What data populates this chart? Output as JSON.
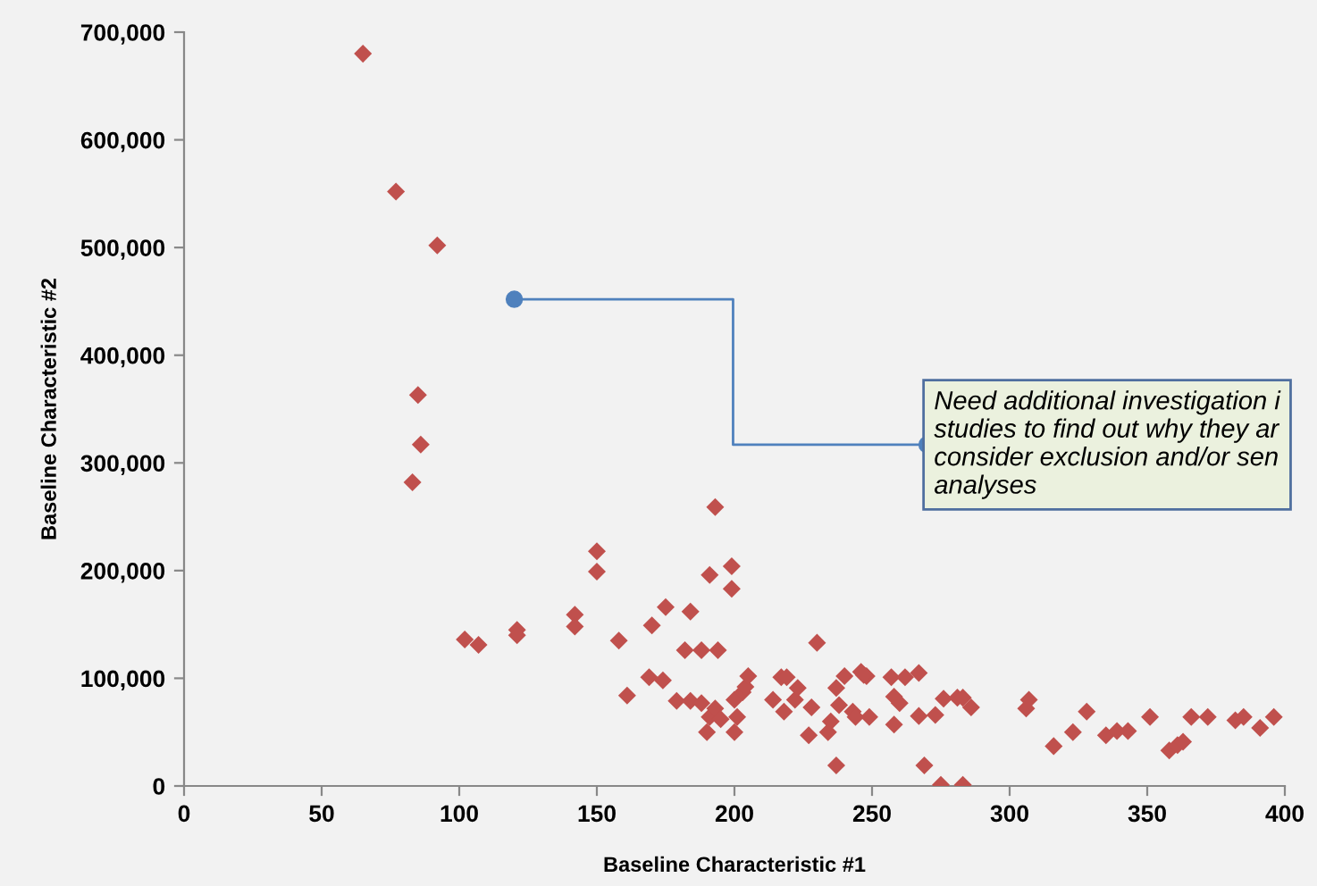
{
  "chart_data": {
    "type": "scatter",
    "xlabel": "Baseline Characteristic #1",
    "ylabel": "Baseline Characteristic #2",
    "x": [
      65,
      77,
      92,
      85,
      86,
      83,
      102,
      107,
      121,
      121,
      142,
      142,
      150,
      150,
      158,
      161,
      169,
      170,
      174,
      175,
      179,
      182,
      184,
      184,
      188,
      188,
      191,
      190,
      191,
      193,
      193,
      194,
      195,
      199,
      199,
      200,
      201,
      200,
      203,
      204,
      205,
      214,
      217,
      219,
      218,
      222,
      223,
      227,
      228,
      230,
      234,
      235,
      237,
      237,
      238,
      240,
      243,
      246,
      244,
      248,
      249,
      247,
      257,
      262,
      267,
      258,
      260,
      258,
      267,
      273,
      269,
      275,
      283,
      276,
      281,
      283,
      286,
      306,
      307,
      316,
      323,
      328,
      335,
      339,
      343,
      351,
      358,
      361,
      363,
      366,
      372,
      382,
      385,
      391,
      396
    ],
    "values": [
      680000,
      552000,
      502000,
      363000,
      317000,
      282000,
      136000,
      131000,
      145000,
      140000,
      159000,
      148000,
      218000,
      199000,
      135000,
      84000,
      101000,
      149000,
      98000,
      166000,
      79000,
      126000,
      162000,
      79000,
      126000,
      77000,
      64000,
      50000,
      196000,
      259000,
      72000,
      126000,
      62000,
      204000,
      183000,
      80000,
      64000,
      50000,
      87000,
      92000,
      102000,
      80000,
      101000,
      101000,
      69000,
      80000,
      91000,
      47000,
      73000,
      133000,
      50000,
      60000,
      19000,
      91000,
      75000,
      102000,
      69000,
      106000,
      64000,
      102000,
      64000,
      103000,
      101000,
      101000,
      105000,
      83000,
      77000,
      57000,
      65000,
      66000,
      19000,
      1000,
      1000,
      81000,
      82000,
      82000,
      73000,
      72000,
      80000,
      37000,
      50000,
      69000,
      47000,
      51000,
      51000,
      64000,
      33000,
      38000,
      41000,
      64000,
      64000,
      61000,
      64000,
      54000,
      64000
    ],
    "color": "#c0504d",
    "marker": "diamond",
    "grid": false,
    "xlim": [
      0,
      400
    ],
    "xticks": [
      0,
      50,
      100,
      150,
      200,
      250,
      300,
      350,
      400
    ],
    "ylim": [
      0,
      700000
    ],
    "yticks": [
      {
        "value": 0,
        "label": "0"
      },
      {
        "value": 100000,
        "label": "100,000"
      },
      {
        "value": 200000,
        "label": "200,000"
      },
      {
        "value": 300000,
        "label": "300,000"
      },
      {
        "value": 400000,
        "label": "400,000"
      },
      {
        "value": 500000,
        "label": "500,000"
      },
      {
        "value": 600000,
        "label": "600,000"
      },
      {
        "value": 700000,
        "label": "700,000"
      }
    ],
    "annotations": [
      {
        "text": "Need additional investigation i\nstudies to find out why they ar\nconsider exclusion and/or sen\nanalyses",
        "x": 120,
        "y": 452000
      }
    ]
  }
}
